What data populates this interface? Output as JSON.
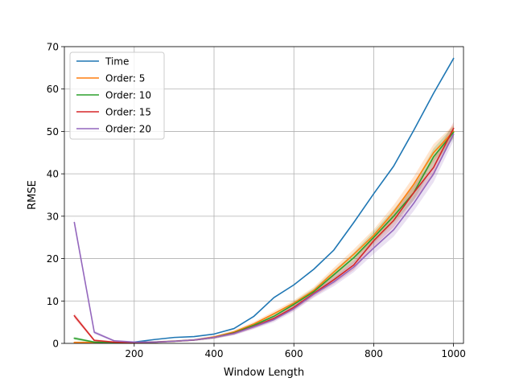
{
  "chart_data": {
    "type": "line",
    "title": "",
    "xlabel": "Window Length",
    "ylabel": "RMSE",
    "xlim": [
      25,
      1025
    ],
    "ylim": [
      0,
      70
    ],
    "xticks": [
      200,
      400,
      600,
      800,
      1000
    ],
    "yticks": [
      0,
      10,
      20,
      30,
      40,
      50,
      60,
      70
    ],
    "grid": true,
    "legend_position": "top-left",
    "x": [
      50,
      100,
      150,
      200,
      250,
      300,
      350,
      400,
      450,
      500,
      550,
      600,
      650,
      700,
      750,
      800,
      850,
      900,
      950,
      1000
    ],
    "series": [
      {
        "name": "Time",
        "color": "#1f77b4",
        "values": [
          null,
          null,
          null,
          0.3,
          0.9,
          1.4,
          1.6,
          2.2,
          3.5,
          6.4,
          10.8,
          13.8,
          17.5,
          22.0,
          28.5,
          35.3,
          41.8,
          50.2,
          59.0,
          67.2
        ]
      },
      {
        "name": "Order: 5",
        "color": "#ff7f0e",
        "values": [
          0.2,
          0.2,
          0.2,
          0.2,
          0.3,
          0.5,
          0.8,
          1.5,
          2.7,
          4.6,
          7.0,
          9.5,
          12.5,
          16.8,
          21.0,
          25.5,
          31.0,
          37.5,
          45.0,
          50.0
        ],
        "band": [
          0.3,
          0.3,
          0.2,
          0.2,
          0.2,
          0.2,
          0.2,
          0.3,
          0.4,
          0.5,
          0.6,
          0.7,
          0.8,
          1.0,
          1.2,
          1.4,
          1.6,
          1.8,
          2.0,
          1.5
        ]
      },
      {
        "name": "Order: 10",
        "color": "#2ca02c",
        "values": [
          1.2,
          0.3,
          0.2,
          0.2,
          0.3,
          0.5,
          0.8,
          1.4,
          2.5,
          4.3,
          6.4,
          9.2,
          12.2,
          16.2,
          20.2,
          25.0,
          30.0,
          35.5,
          44.0,
          49.8
        ],
        "band": [
          0.4,
          0.2,
          0.2,
          0.2,
          0.2,
          0.2,
          0.2,
          0.3,
          0.4,
          0.5,
          0.6,
          0.7,
          0.8,
          1.0,
          1.2,
          1.4,
          1.6,
          1.8,
          2.0,
          1.5
        ]
      },
      {
        "name": "Order: 15",
        "color": "#d62728",
        "values": [
          6.5,
          0.7,
          0.3,
          0.2,
          0.3,
          0.5,
          0.8,
          1.4,
          2.4,
          4.0,
          5.9,
          8.5,
          11.8,
          15.0,
          18.5,
          24.2,
          29.0,
          35.5,
          41.5,
          50.7
        ],
        "band": [
          0.6,
          0.3,
          0.2,
          0.2,
          0.2,
          0.2,
          0.2,
          0.3,
          0.4,
          0.5,
          0.6,
          0.7,
          0.8,
          1.0,
          1.2,
          1.4,
          1.6,
          1.8,
          2.0,
          1.5
        ]
      },
      {
        "name": "Order: 20",
        "color": "#9467bd",
        "values": [
          28.5,
          2.6,
          0.6,
          0.3,
          0.3,
          0.5,
          0.8,
          1.4,
          2.3,
          3.9,
          5.6,
          8.2,
          11.6,
          14.5,
          18.0,
          22.5,
          26.8,
          33.0,
          40.0,
          49.3
        ],
        "band": [
          0.8,
          0.4,
          0.2,
          0.2,
          0.2,
          0.2,
          0.2,
          0.3,
          0.4,
          0.5,
          0.6,
          0.7,
          0.8,
          1.0,
          1.2,
          1.4,
          1.6,
          1.8,
          2.0,
          1.5
        ]
      }
    ]
  }
}
